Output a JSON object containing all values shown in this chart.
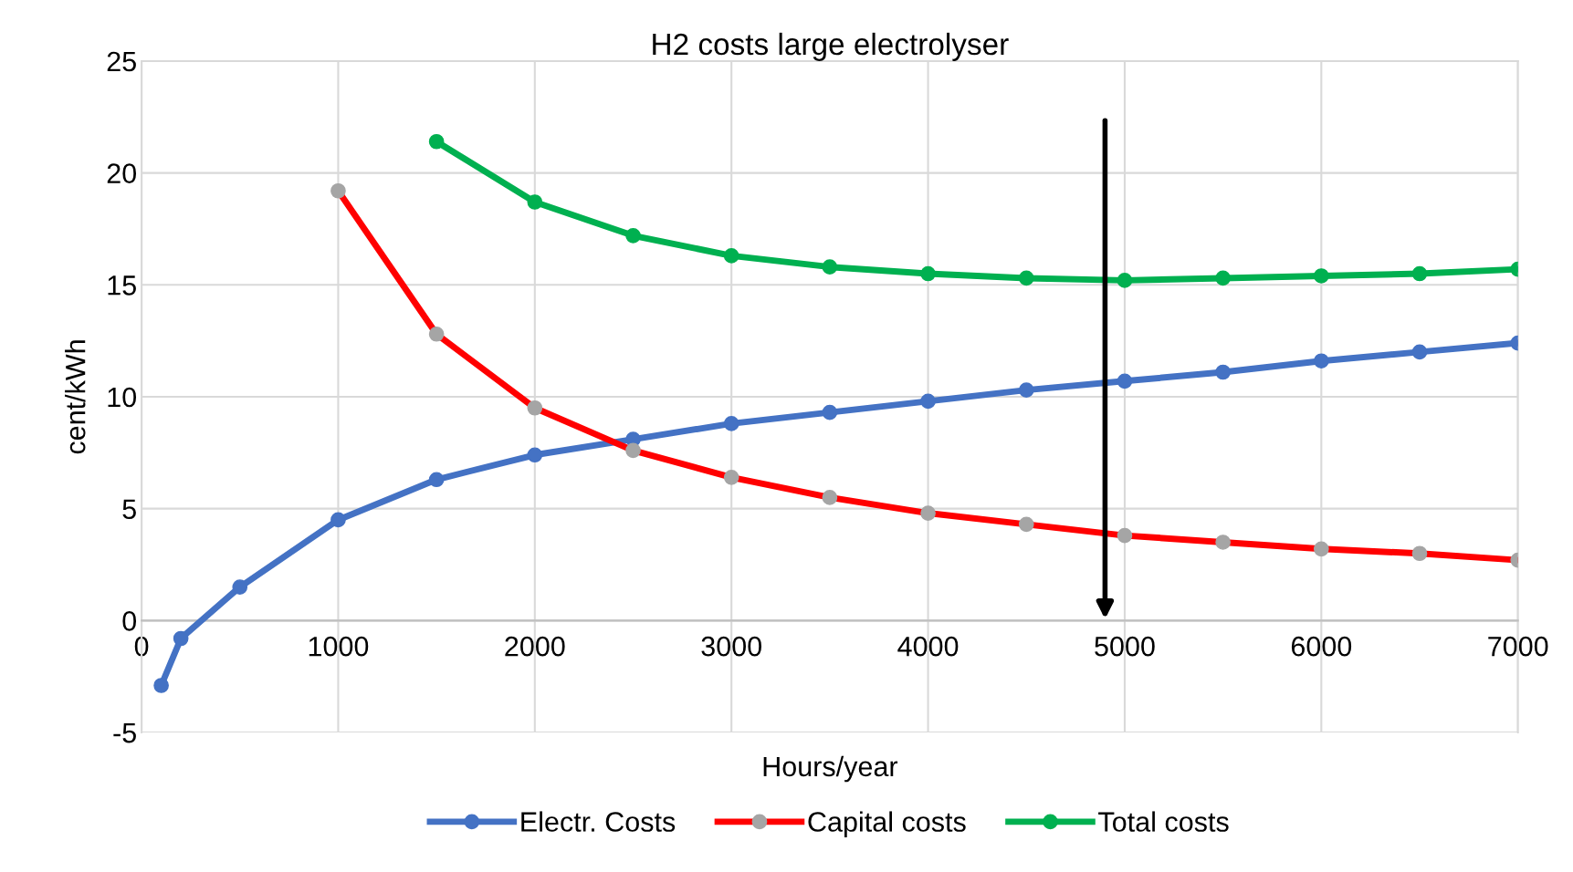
{
  "chart_data": {
    "type": "line",
    "title": "H2 costs large electrolyser",
    "xlabel": "Hours/year",
    "ylabel": "cent/kWh",
    "xlim": [
      0,
      7000
    ],
    "xticks": [
      0,
      1000,
      2000,
      3000,
      4000,
      5000,
      6000,
      7000
    ],
    "ylim": [
      -5,
      25
    ],
    "yticks": [
      -5,
      0,
      5,
      10,
      15,
      20,
      25
    ],
    "grid": true,
    "legend": "bottom",
    "marker": "circle",
    "line_style": "solid",
    "series": [
      {
        "name": "Electr. Costs",
        "color": "#4472c4",
        "x": [
          100,
          200,
          500,
          1000,
          1500,
          2000,
          2500,
          3000,
          3500,
          4000,
          4500,
          5000,
          5500,
          6000,
          6500,
          7000
        ],
        "values": [
          -2.9,
          -0.8,
          1.5,
          4.5,
          6.3,
          7.4,
          8.1,
          8.8,
          9.3,
          9.8,
          10.3,
          10.7,
          11.1,
          11.6,
          12.0,
          12.4
        ]
      },
      {
        "name": "Capital costs",
        "color": "#ff0000",
        "colors": [
          "#a5a5a5",
          "#a5a5a5",
          "#a5a5a5",
          "#a5a5a5",
          "#a5a5a5",
          "#a5a5a5",
          "#a5a5a5",
          "#a5a5a5",
          "#a5a5a5",
          "#a5a5a5",
          "#a5a5a5",
          "#a5a5a5",
          "#a5a5a5"
        ],
        "x": [
          1000,
          1500,
          2000,
          2500,
          3000,
          3500,
          4000,
          4500,
          5000,
          5500,
          6000,
          6500,
          7000
        ],
        "values": [
          19.2,
          12.8,
          9.5,
          7.6,
          6.4,
          5.5,
          4.8,
          4.3,
          3.8,
          3.5,
          3.2,
          3.0,
          2.7
        ]
      },
      {
        "name": "Total costs",
        "color": "#00b050",
        "x": [
          1500,
          2000,
          2500,
          3000,
          3500,
          4000,
          4500,
          5000,
          5500,
          6000,
          6500,
          7000
        ],
        "values": [
          21.4,
          18.7,
          17.2,
          16.3,
          15.8,
          15.5,
          15.3,
          15.2,
          15.3,
          15.4,
          15.5,
          15.7
        ]
      }
    ]
  }
}
